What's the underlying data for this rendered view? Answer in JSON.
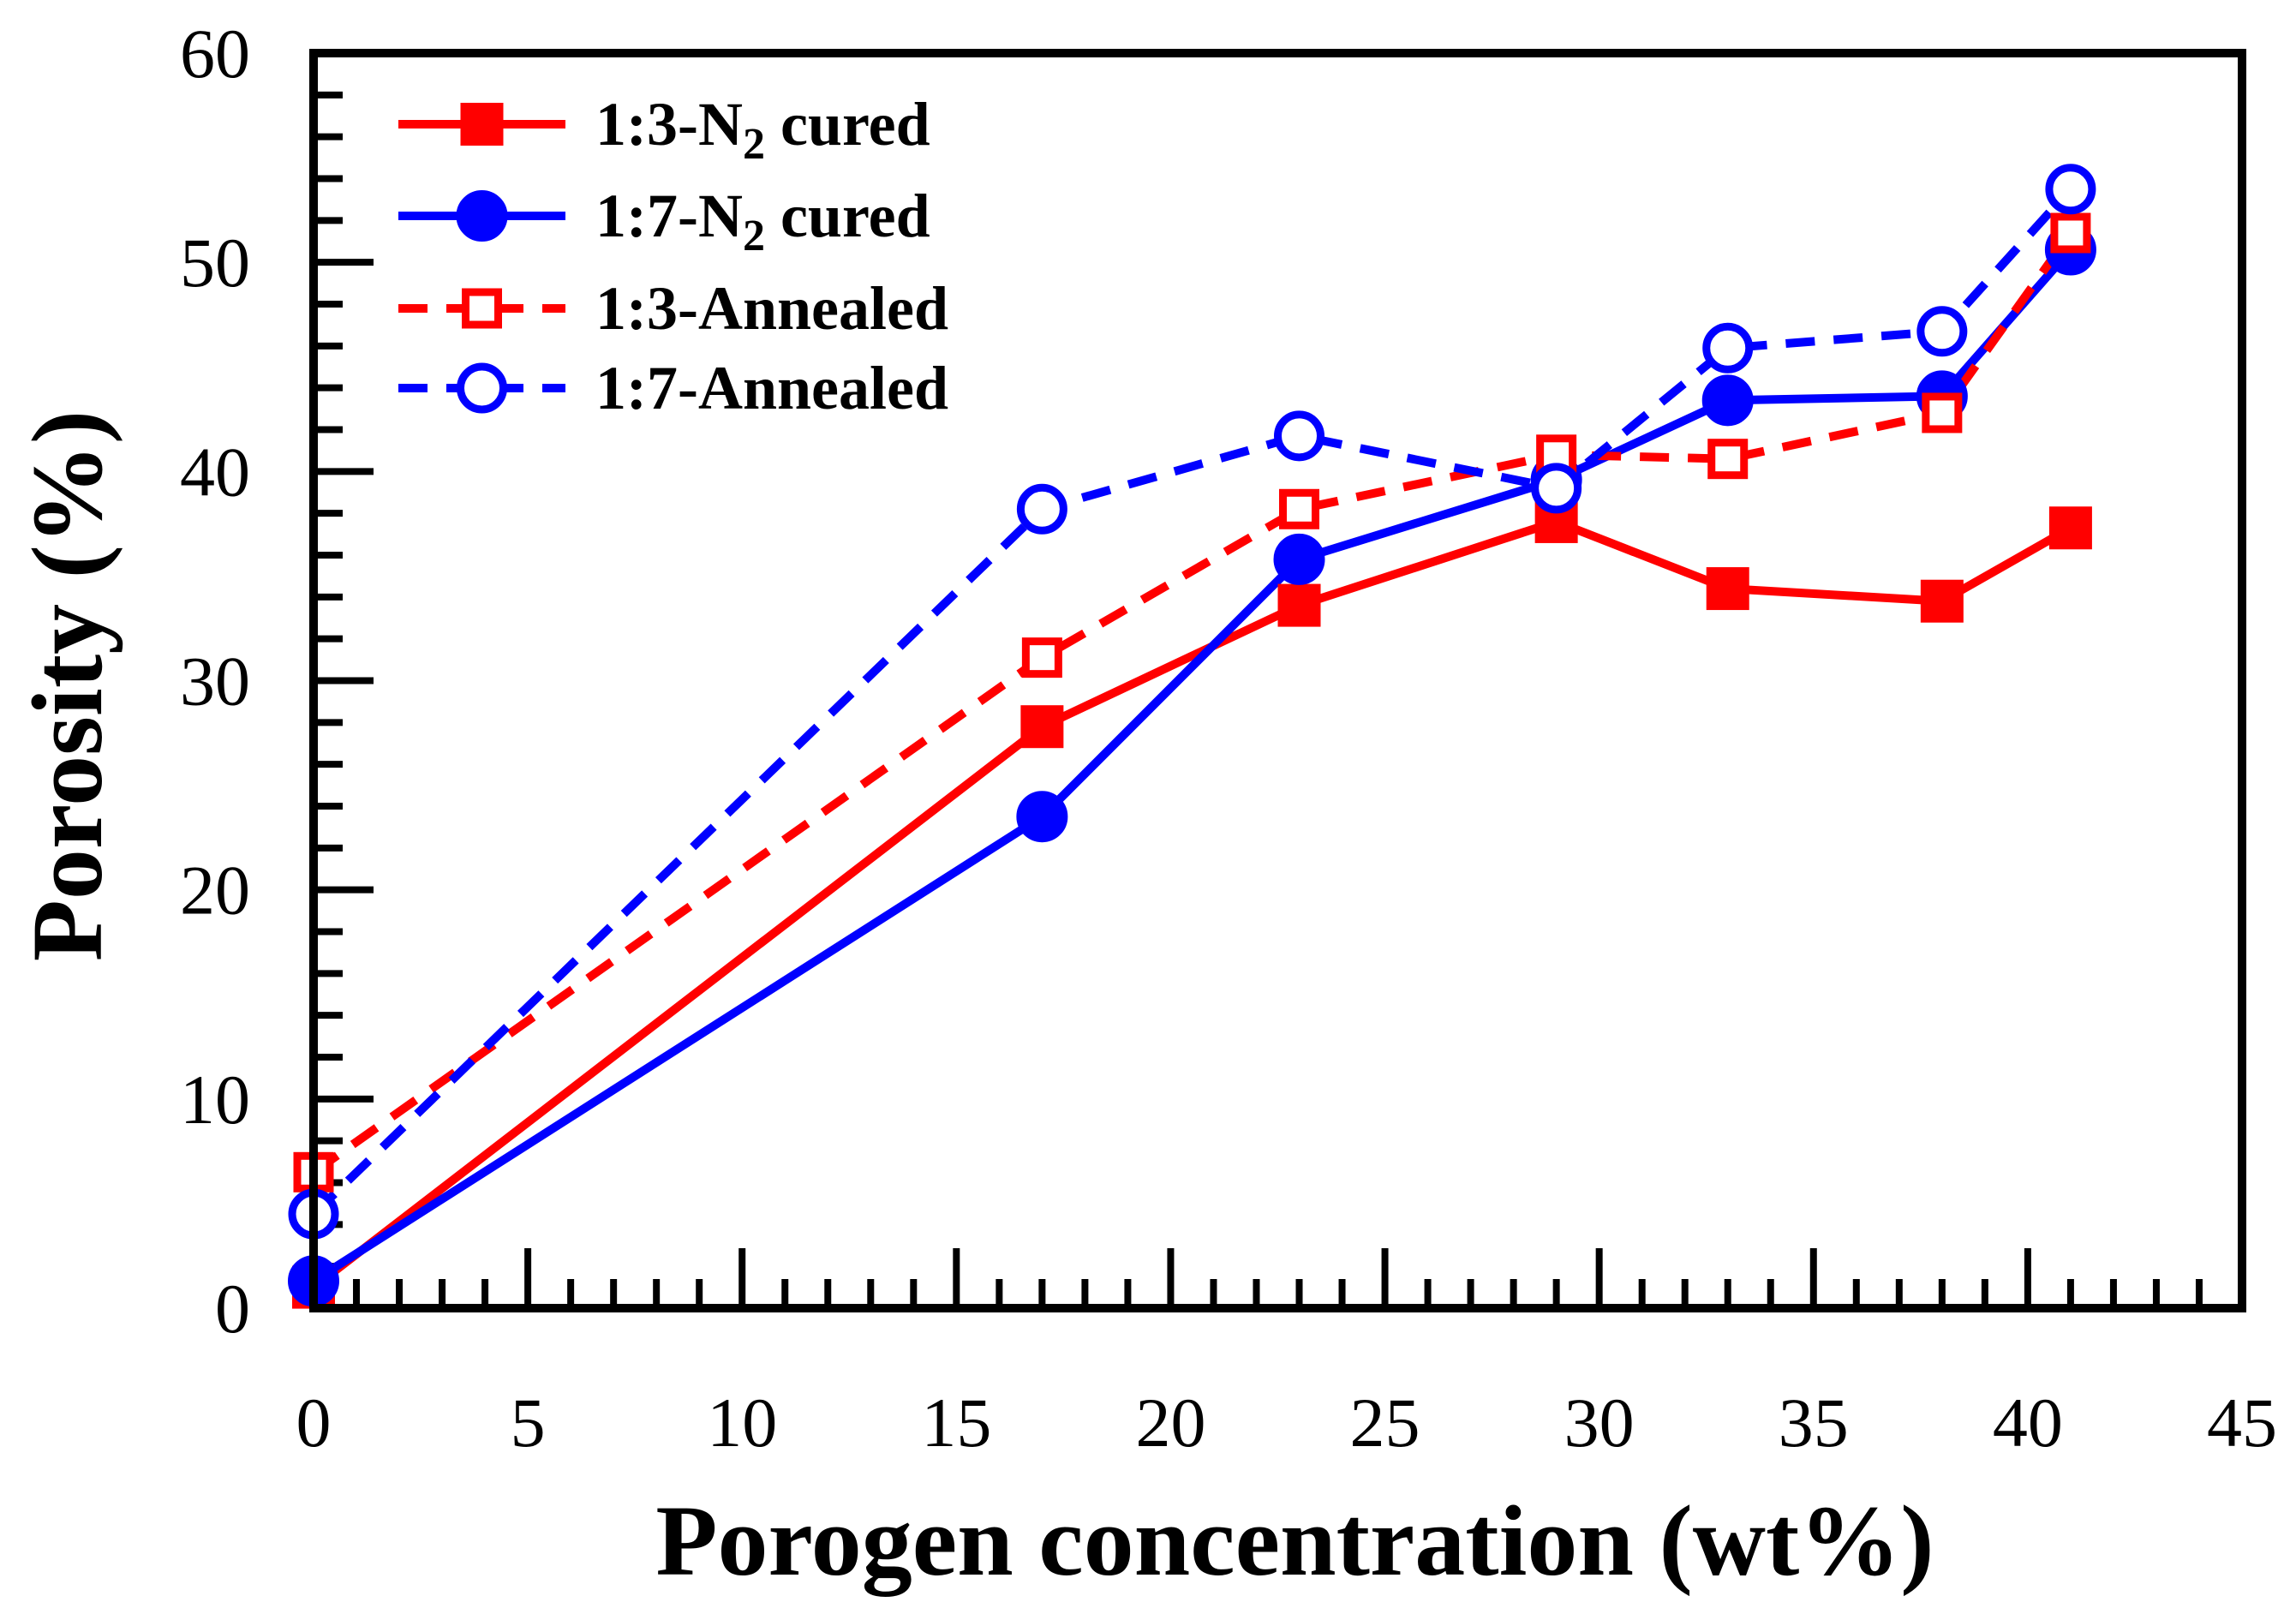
{
  "chart_data": {
    "type": "line",
    "title": "",
    "xlabel": "Porogen concentration (wt%)",
    "ylabel": "Porosity (%)",
    "xlim": [
      0,
      45
    ],
    "ylim": [
      0,
      60
    ],
    "xticks": [
      0,
      5,
      10,
      15,
      20,
      25,
      30,
      35,
      40,
      45
    ],
    "yticks": [
      0,
      10,
      20,
      30,
      40,
      50,
      60
    ],
    "x_minor_step": 1,
    "y_minor_step": 2,
    "grid": false,
    "legend_position": "top-left",
    "series": [
      {
        "name": "1:3-N2 cured",
        "label_main": "1:3-N",
        "label_sub": "2",
        "label_tail": " cured",
        "color": "#ff0000",
        "linestyle": "solid",
        "marker": "square",
        "filled": true,
        "x": [
          0,
          17,
          23,
          29,
          33,
          38,
          41
        ],
        "y": [
          1.0,
          27.8,
          33.6,
          37.6,
          34.4,
          33.8,
          37.3
        ]
      },
      {
        "name": "1:7-N2 cured",
        "label_main": "1:7-N",
        "label_sub": "2",
        "label_tail": " cured",
        "color": "#0000ff",
        "linestyle": "solid",
        "marker": "circle",
        "filled": true,
        "x": [
          0,
          17,
          23,
          29,
          33,
          38,
          41
        ],
        "y": [
          1.3,
          23.5,
          35.8,
          39.6,
          43.4,
          43.6,
          50.6
        ]
      },
      {
        "name": "1:3-Annealed",
        "label_main": "1:3-Annealed",
        "label_sub": "",
        "label_tail": "",
        "color": "#ff0000",
        "linestyle": "dashed",
        "marker": "square",
        "filled": false,
        "x": [
          0,
          17,
          23,
          29,
          33,
          38,
          41
        ],
        "y": [
          6.5,
          31.1,
          38.2,
          40.8,
          40.6,
          42.8,
          51.4
        ]
      },
      {
        "name": "1:7-Annealed",
        "label_main": "1:7-Annealed",
        "label_sub": "",
        "label_tail": "",
        "color": "#0000ff",
        "linestyle": "dashed",
        "marker": "circle",
        "filled": false,
        "x": [
          0,
          17,
          23,
          29,
          33,
          38,
          41
        ],
        "y": [
          4.5,
          38.2,
          41.7,
          39.2,
          45.9,
          46.7,
          53.5
        ]
      }
    ]
  }
}
